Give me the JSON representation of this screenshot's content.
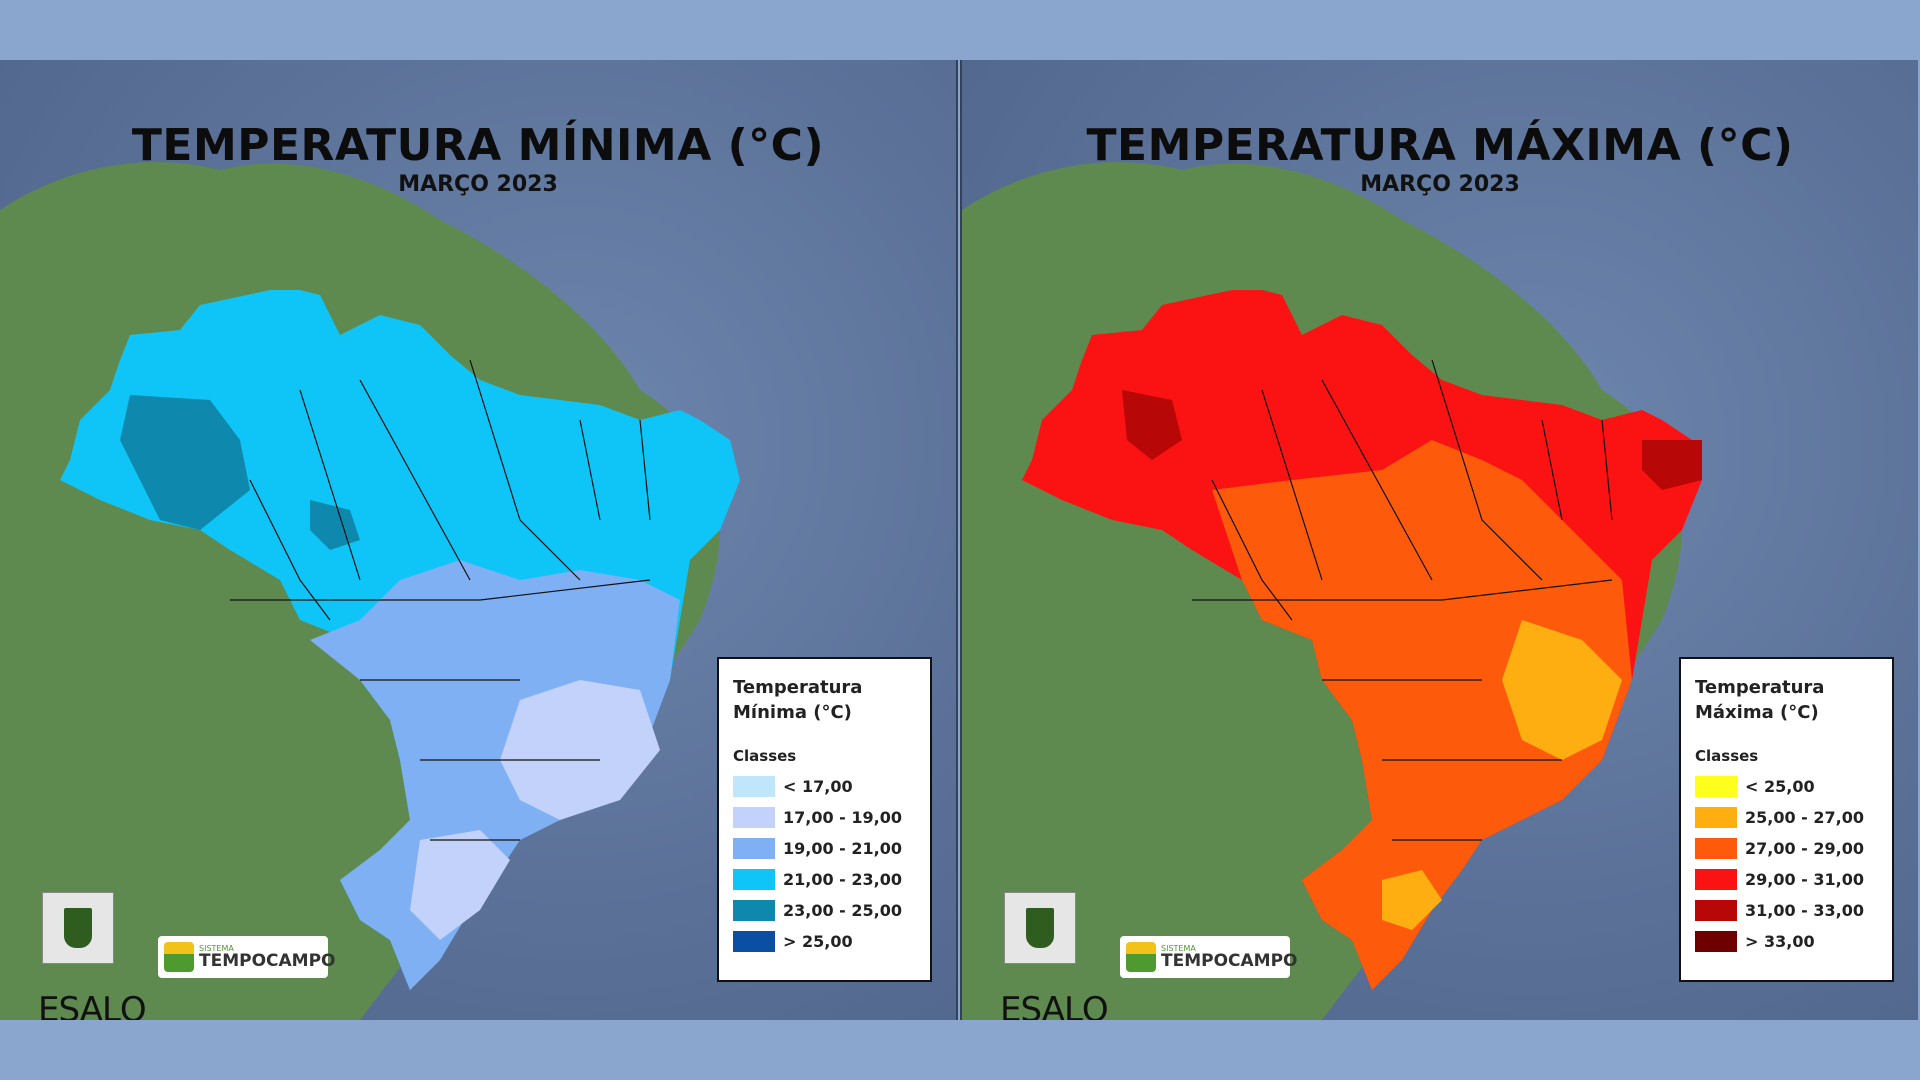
{
  "colors": {
    "page_background": "#8aa6cf",
    "ocean": "#5b7198",
    "land": "#5f8a4f"
  },
  "panels": [
    {
      "title": "TEMPERATURA MÍNIMA (°C)",
      "subtitle": "MARÇO 2023",
      "legend": {
        "title_line1": "Temperatura",
        "title_line2": "Mínima (°C)",
        "classes_label": "Classes",
        "items": [
          {
            "label": "< 17,00",
            "color": "#bfe6fb"
          },
          {
            "label": "17,00 - 19,00",
            "color": "#c3d2fb"
          },
          {
            "label": "19,00 - 21,00",
            "color": "#7fb0f3"
          },
          {
            "label": "21,00 - 23,00",
            "color": "#0fc4f6"
          },
          {
            "label": "23,00 - 25,00",
            "color": "#0f88ad"
          },
          {
            "label": "> 25,00",
            "color": "#0a4fa3"
          }
        ]
      },
      "map_colors": {
        "base": "#0fc4f6",
        "mid": "#7fb0f3",
        "light": "#c3d2fb",
        "dark": "#0f88ad"
      }
    },
    {
      "title": "TEMPERATURA MÁXIMA (°C)",
      "subtitle": "MARÇO 2023",
      "legend": {
        "title_line1": "Temperatura",
        "title_line2": "Máxima (°C)",
        "classes_label": "Classes",
        "items": [
          {
            "label": "< 25,00",
            "color": "#ffff1e"
          },
          {
            "label": "25,00 - 27,00",
            "color": "#ffae12"
          },
          {
            "label": "27,00 - 29,00",
            "color": "#fd5a0c"
          },
          {
            "label": "29,00 - 31,00",
            "color": "#fb1212"
          },
          {
            "label": "31,00 - 33,00",
            "color": "#b80707"
          },
          {
            "label": "> 33,00",
            "color": "#6e0000"
          }
        ]
      },
      "map_colors": {
        "base": "#fb1212",
        "mid": "#fd5a0c",
        "light": "#ffae12",
        "dark": "#b80707"
      }
    }
  ],
  "logos": {
    "esalq": "ESALQ",
    "tempocampo_small": "SISTEMA",
    "tempocampo_big": "TEMPOCAMPO"
  }
}
